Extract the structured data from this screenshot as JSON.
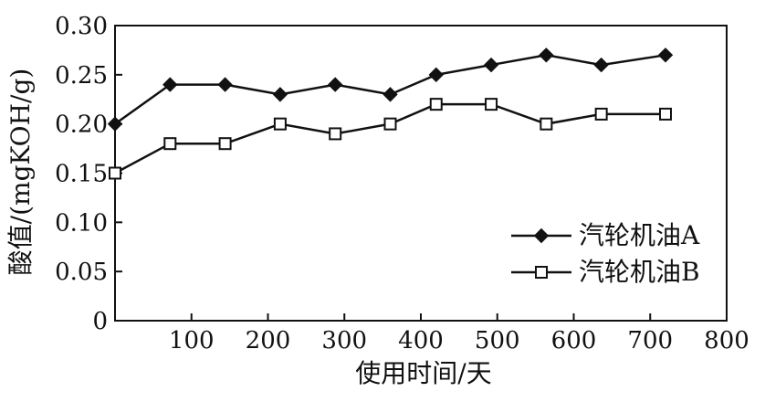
{
  "chart_data": {
    "type": "line",
    "title": "",
    "xlabel": "使用时间/天",
    "ylabel": "酸值/(mgKOH/g)",
    "xlim": [
      0,
      800
    ],
    "ylim": [
      0,
      0.3
    ],
    "x_ticks": [
      100,
      200,
      300,
      400,
      500,
      600,
      700,
      800
    ],
    "x_tick_labels": [
      "100",
      "200",
      "300",
      "400",
      "500",
      "600",
      "700",
      "800"
    ],
    "y_ticks": [
      0,
      0.05,
      0.1,
      0.15,
      0.2,
      0.25,
      0.3
    ],
    "y_tick_labels": [
      "0",
      "0.05",
      "0.10",
      "0.15",
      "0.20",
      "0.25",
      "0.30"
    ],
    "grid": false,
    "legend_position": "bottom-right",
    "series": [
      {
        "name": "汽轮机油A",
        "marker": "filled-diamond",
        "color": "#111111",
        "x": [
          0,
          72,
          144,
          216,
          288,
          360,
          420,
          492,
          564,
          636,
          720
        ],
        "y": [
          0.2,
          0.24,
          0.24,
          0.23,
          0.24,
          0.23,
          0.25,
          0.26,
          0.27,
          0.26,
          0.27
        ]
      },
      {
        "name": "汽轮机油B",
        "marker": "open-square",
        "color": "#111111",
        "x": [
          0,
          72,
          144,
          216,
          288,
          360,
          420,
          492,
          564,
          636,
          720
        ],
        "y": [
          0.15,
          0.18,
          0.18,
          0.2,
          0.19,
          0.2,
          0.22,
          0.22,
          0.2,
          0.21,
          0.21
        ]
      }
    ]
  }
}
